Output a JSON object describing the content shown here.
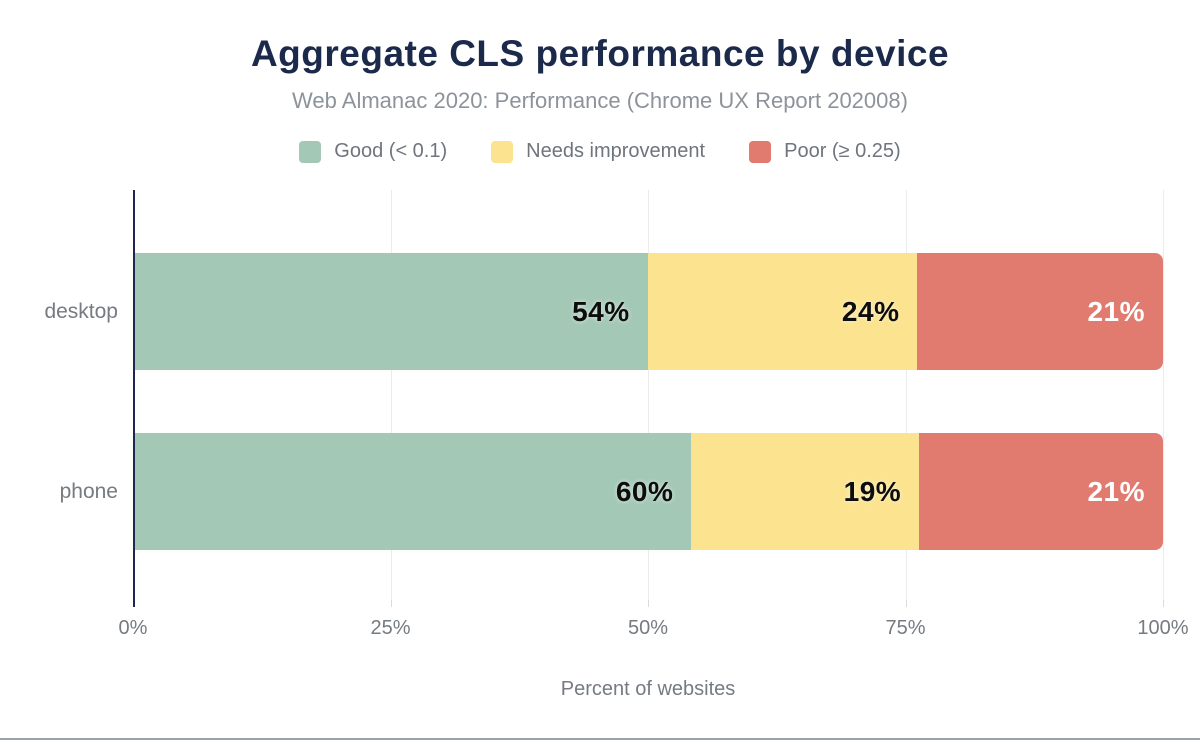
{
  "header": {
    "title": "Aggregate CLS performance by device",
    "subtitle": "Web Almanac 2020: Performance (Chrome UX Report 202008)"
  },
  "colors": {
    "title_navy": "#1b2a4b",
    "axis_navy": "#1b2a4b",
    "muted_text": "#757b81",
    "subtitle_gray": "#8d939a",
    "gridline": "#ececec",
    "good_green": "#a4c8b6",
    "needs_improvement_yellow": "#fbe38f",
    "poor_red": "#e17b70"
  },
  "chart_data": {
    "type": "bar",
    "variant": "horizontal-stacked",
    "title": "Aggregate CLS performance by device",
    "subtitle": "Web Almanac 2020: Performance (Chrome UX Report 202008)",
    "categories": [
      "desktop",
      "phone"
    ],
    "series": [
      {
        "name": "Good (< 0.1)",
        "color": "#a4c8b6",
        "label_color": "dark",
        "values": [
          54,
          60
        ]
      },
      {
        "name": "Needs improvement",
        "color": "#fbe38f",
        "label_color": "dark",
        "values": [
          24,
          19
        ]
      },
      {
        "name": "Poor (≥ 0.25)",
        "color": "#e17b70",
        "label_color": "light",
        "values": [
          21,
          21
        ]
      }
    ],
    "value_labels": [
      [
        "54%",
        "24%",
        "21%"
      ],
      [
        "60%",
        "19%",
        "21%"
      ]
    ],
    "xlabel": "Percent of websites",
    "ylabel": "",
    "xlim": [
      0,
      100
    ],
    "xticks": [
      {
        "value": 0,
        "label": "0%"
      },
      {
        "value": 25,
        "label": "25%"
      },
      {
        "value": 50,
        "label": "50%"
      },
      {
        "value": 75,
        "label": "75%"
      },
      {
        "value": 100,
        "label": "100%"
      }
    ],
    "grid": "vertical",
    "legend_position": "top"
  }
}
